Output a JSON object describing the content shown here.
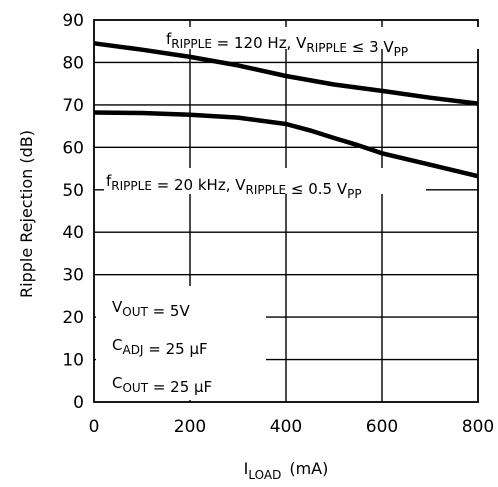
{
  "chart_data": {
    "type": "line",
    "xlabel": {
      "main": "I",
      "sub": "LOAD",
      "unit": "(mA)"
    },
    "ylabel": "Ripple Rejection (dB)",
    "xlim": [
      0,
      800
    ],
    "ylim": [
      0,
      90
    ],
    "xticks": [
      0,
      200,
      400,
      600,
      800
    ],
    "yticks": [
      0,
      10,
      20,
      30,
      40,
      50,
      60,
      70,
      80,
      90
    ],
    "grid": true,
    "series": [
      {
        "name": "f_RIPPLE = 120 Hz, V_RIPPLE ≤ 3 V_PP",
        "x": [
          0,
          100,
          200,
          300,
          400,
          500,
          600,
          700,
          800
        ],
        "y": [
          84.5,
          83,
          81.3,
          79.3,
          76.8,
          74.8,
          73.3,
          71.7,
          70.3
        ]
      },
      {
        "name": "f_RIPPLE = 20 kHz, V_RIPPLE ≤ 0.5 V_PP",
        "x": [
          0,
          100,
          200,
          300,
          400,
          450,
          500,
          550,
          600,
          700,
          800
        ],
        "y": [
          68.2,
          68.1,
          67.7,
          67,
          65.5,
          64,
          62.2,
          60.5,
          58.6,
          55.9,
          53.2
        ]
      }
    ],
    "annotations": {
      "top": [
        {
          "t": "f",
          "s": "RIPPLE"
        },
        {
          "t": " = 120 Hz, V"
        },
        {
          "t": "",
          "s": "RIPPLE"
        },
        {
          "t": " ≤ 3 V"
        },
        {
          "t": "",
          "s": "PP"
        }
      ],
      "bottom": [
        {
          "t": "f",
          "s": "RIPPLE"
        },
        {
          "t": " = 20 kHz, V"
        },
        {
          "t": "",
          "s": "RIPPLE"
        },
        {
          "t": " ≤ 0.5 V"
        },
        {
          "t": "",
          "s": "PP"
        }
      ],
      "conditions": [
        [
          {
            "t": "V",
            "s": "OUT"
          },
          {
            "t": " = 5V"
          }
        ],
        [
          {
            "t": "C",
            "s": "ADJ"
          },
          {
            "t": " = 25 μF"
          }
        ],
        [
          {
            "t": "C",
            "s": "OUT"
          },
          {
            "t": " = 25 μF"
          }
        ]
      ]
    }
  }
}
